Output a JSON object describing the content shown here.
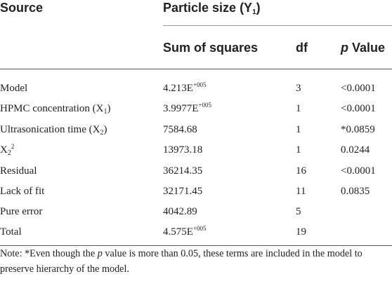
{
  "header": {
    "source": "Source",
    "particle_size": "Particle size (Y",
    "particle_size_sub": "1",
    "particle_size_close": ")",
    "sum_of_squares": "Sum of squares",
    "df": "df",
    "p_italic": "p",
    "value": " Value"
  },
  "rows": [
    {
      "source": "Model",
      "ss_base": "4.213E",
      "ss_sup": "+005",
      "df": "3",
      "p": "<0.0001"
    },
    {
      "source_base": "HPMC concentration (X",
      "source_sub": "1",
      "source_close": ")",
      "ss_base": "3.9977E",
      "ss_sup": "+005",
      "df": "1",
      "p": "<0.0001"
    },
    {
      "source_base": "Ultrasonication time (X",
      "source_sub": "2",
      "source_close": ")",
      "ss": "7584.68",
      "df": "1",
      "p": "*0.0859"
    },
    {
      "source_base": "X",
      "source_sub": "2",
      "source_sup": "2",
      "ss": "13973.18",
      "df": "1",
      "p": "0.0244"
    },
    {
      "source": "Residual",
      "ss": "36214.35",
      "df": "16",
      "p": "<0.0001"
    },
    {
      "source": "Lack of fit",
      "ss": "32171.45",
      "df": "11",
      "p": "0.0835"
    },
    {
      "source": "Pure error",
      "ss": "4042.89",
      "df": "5",
      "p": ""
    },
    {
      "source": "Total",
      "ss_base": "4.575E",
      "ss_sup": "+005",
      "df": "19",
      "p": ""
    }
  ],
  "note": {
    "part1": "Note: *Even though the ",
    "p_italic": "p",
    "part2": " value is more than 0.05, these terms are included in the model to preserve hierarchy of the model."
  }
}
